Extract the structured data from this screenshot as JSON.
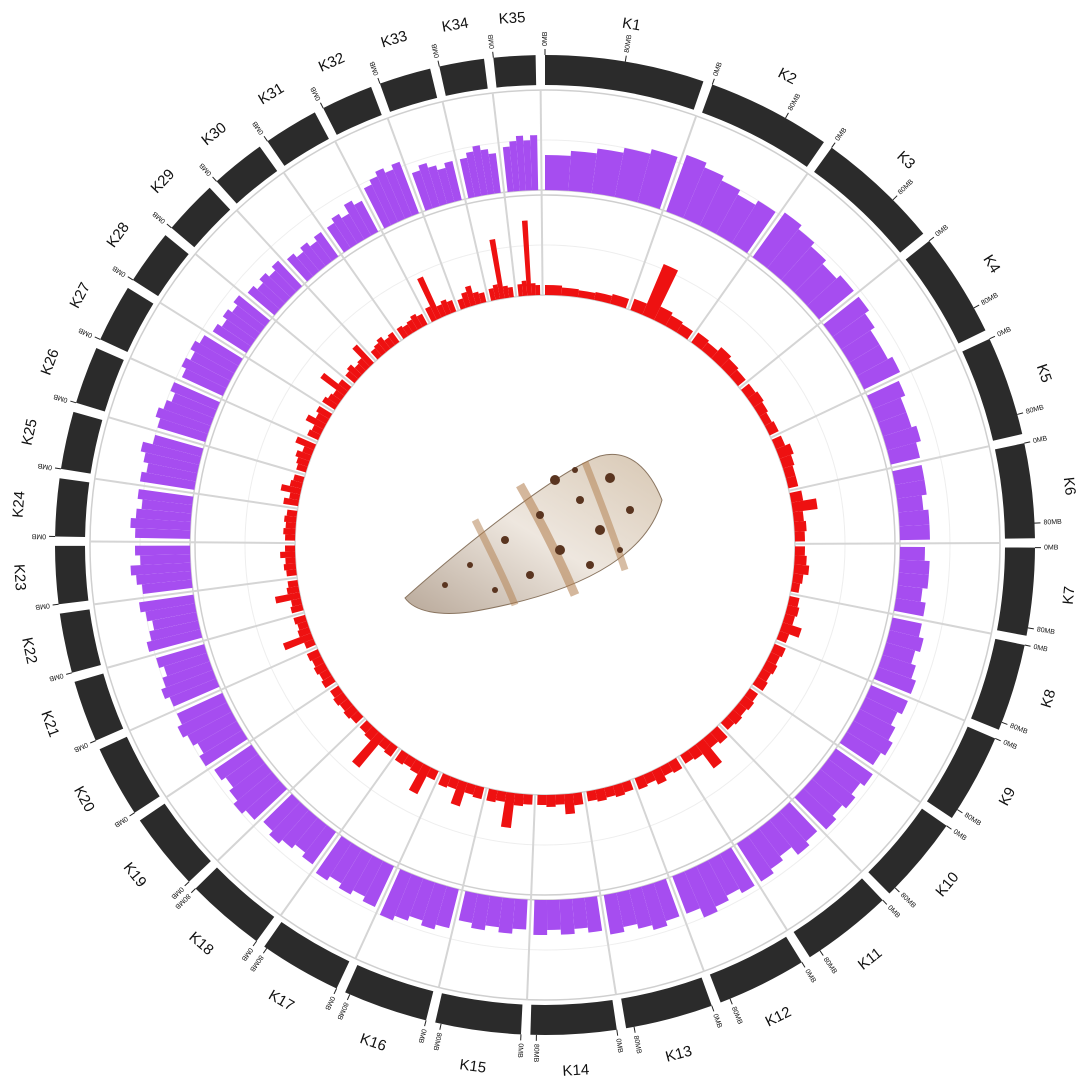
{
  "chart_data": {
    "type": "circos",
    "chromosomes": [
      {
        "name": "K1",
        "length": 160
      },
      {
        "name": "K2",
        "length": 125
      },
      {
        "name": "K3",
        "length": 125
      },
      {
        "name": "K4",
        "length": 105
      },
      {
        "name": "K5",
        "length": 100
      },
      {
        "name": "K6",
        "length": 95
      },
      {
        "name": "K7",
        "length": 88
      },
      {
        "name": "K8",
        "length": 88
      },
      {
        "name": "K9",
        "length": 90
      },
      {
        "name": "K10",
        "length": 88
      },
      {
        "name": "K11",
        "length": 92
      },
      {
        "name": "K12",
        "length": 90
      },
      {
        "name": "K13",
        "length": 88
      },
      {
        "name": "K14",
        "length": 86
      },
      {
        "name": "K15",
        "length": 86
      },
      {
        "name": "K16",
        "length": 85
      },
      {
        "name": "K17",
        "length": 83
      },
      {
        "name": "K18",
        "length": 80
      },
      {
        "name": "K19",
        "length": 78
      },
      {
        "name": "K20",
        "length": 72
      },
      {
        "name": "K21",
        "length": 62
      },
      {
        "name": "K22",
        "length": 60
      },
      {
        "name": "K23",
        "length": 58
      },
      {
        "name": "K24",
        "length": 58
      },
      {
        "name": "K25",
        "length": 58
      },
      {
        "name": "K26",
        "length": 58
      },
      {
        "name": "K27",
        "length": 58
      },
      {
        "name": "K28",
        "length": 55
      },
      {
        "name": "K29",
        "length": 55
      },
      {
        "name": "K30",
        "length": 55
      },
      {
        "name": "K31",
        "length": 55
      },
      {
        "name": "K32",
        "length": 52
      },
      {
        "name": "K33",
        "length": 52
      },
      {
        "name": "K34",
        "length": 45
      },
      {
        "name": "K35",
        "length": 42
      }
    ],
    "ticks": [
      {
        "value": 0,
        "label": "0MB"
      },
      {
        "value": 80,
        "label": "80MB"
      }
    ],
    "color": "#2b2b2b",
    "tracks": [
      {
        "color": "#a64df0",
        "ylim": [
          0,
          1
        ],
        "values": [
          [
            0.35,
            0.4,
            0.45,
            0.5,
            0.55
          ],
          [
            0.6,
            0.55,
            0.5,
            0.45,
            0.5
          ],
          [
            0.55,
            0.5,
            0.45,
            0.4,
            0.45
          ],
          [
            0.45,
            0.4,
            0.35,
            0.35,
            0.4
          ],
          [
            0.35,
            0.3,
            0.3,
            0.35,
            0.3
          ],
          [
            0.3,
            0.3,
            0.25,
            0.3,
            0.3
          ],
          [
            0.25,
            0.3,
            0.3,
            0.25,
            0.3
          ],
          [
            0.3,
            0.35,
            0.3,
            0.35,
            0.4
          ],
          [
            0.4,
            0.35,
            0.4,
            0.45,
            0.4
          ],
          [
            0.45,
            0.4,
            0.45,
            0.4,
            0.45
          ],
          [
            0.4,
            0.45,
            0.35,
            0.4,
            0.45
          ],
          [
            0.45,
            0.4,
            0.45,
            0.5,
            0.4
          ],
          [
            0.4,
            0.45,
            0.4,
            0.35,
            0.4
          ],
          [
            0.35,
            0.3,
            0.35,
            0.3,
            0.35
          ],
          [
            0.3,
            0.35,
            0.3,
            0.35,
            0.3
          ],
          [
            0.4,
            0.45,
            0.4,
            0.45,
            0.5
          ],
          [
            0.45,
            0.4,
            0.45,
            0.4,
            0.45
          ],
          [
            0.4,
            0.35,
            0.4,
            0.45,
            0.4
          ],
          [
            0.45,
            0.5,
            0.45,
            0.4,
            0.45
          ],
          [
            0.5,
            0.45,
            0.5,
            0.55,
            0.5
          ],
          [
            0.5,
            0.55,
            0.5,
            0.45,
            0.5
          ],
          [
            0.55,
            0.5,
            0.45,
            0.5,
            0.55
          ],
          [
            0.5,
            0.55,
            0.6,
            0.5,
            0.55
          ],
          [
            0.55,
            0.6,
            0.55,
            0.5,
            0.55
          ],
          [
            0.55,
            0.5,
            0.55,
            0.6,
            0.5
          ],
          [
            0.5,
            0.55,
            0.5,
            0.45,
            0.5
          ],
          [
            0.45,
            0.5,
            0.45,
            0.5,
            0.45
          ],
          [
            0.4,
            0.35,
            0.4,
            0.35,
            0.4
          ],
          [
            0.35,
            0.3,
            0.35,
            0.3,
            0.35
          ],
          [
            0.3,
            0.25,
            0.3,
            0.25,
            0.3
          ],
          [
            0.3,
            0.35,
            0.3,
            0.4,
            0.35
          ],
          [
            0.45,
            0.5,
            0.55,
            0.5,
            0.55
          ],
          [
            0.4,
            0.45,
            0.4,
            0.35,
            0.4
          ],
          [
            0.4,
            0.45,
            0.5,
            0.45,
            0.4
          ],
          [
            0.45,
            0.5,
            0.55,
            0.5,
            0.55
          ]
        ]
      },
      {
        "color": "#ee1111",
        "ylim": [
          0,
          1
        ],
        "values": [
          [
            0.1,
            0.08,
            0.07,
            0.08,
            0.1
          ],
          [
            0.12,
            0.55,
            0.15,
            0.12,
            0.1
          ],
          [
            0.12,
            0.1,
            0.15,
            0.12,
            0.1
          ],
          [
            0.1,
            0.12,
            0.1,
            0.08,
            0.1
          ],
          [
            0.1,
            0.15,
            0.12,
            0.1,
            0.1
          ],
          [
            0.12,
            0.25,
            0.1,
            0.12,
            0.1
          ],
          [
            0.1,
            0.12,
            0.15,
            0.1,
            0.08
          ],
          [
            0.1,
            0.12,
            0.1,
            0.2,
            0.1
          ],
          [
            0.12,
            0.1,
            0.12,
            0.1,
            0.12
          ],
          [
            0.1,
            0.12,
            0.1,
            0.12,
            0.1
          ],
          [
            0.15,
            0.12,
            0.3,
            0.12,
            0.1
          ],
          [
            0.12,
            0.1,
            0.15,
            0.1,
            0.12
          ],
          [
            0.1,
            0.12,
            0.1,
            0.12,
            0.1
          ],
          [
            0.12,
            0.2,
            0.1,
            0.12,
            0.1
          ],
          [
            0.1,
            0.12,
            0.35,
            0.1,
            0.12
          ],
          [
            0.12,
            0.1,
            0.25,
            0.1,
            0.12
          ],
          [
            0.1,
            0.3,
            0.12,
            0.1,
            0.12
          ],
          [
            0.12,
            0.1,
            0.4,
            0.12,
            0.1
          ],
          [
            0.1,
            0.12,
            0.1,
            0.12,
            0.1
          ],
          [
            0.12,
            0.1,
            0.12,
            0.1,
            0.12
          ],
          [
            0.1,
            0.3,
            0.12,
            0.1,
            0.12
          ],
          [
            0.12,
            0.1,
            0.25,
            0.12,
            0.1
          ],
          [
            0.1,
            0.12,
            0.1,
            0.15,
            0.1
          ],
          [
            0.1,
            0.12,
            0.1,
            0.12,
            0.1
          ],
          [
            0.15,
            0.1,
            0.2,
            0.12,
            0.1
          ],
          [
            0.1,
            0.12,
            0.15,
            0.1,
            0.2
          ],
          [
            0.12,
            0.1,
            0.2,
            0.12,
            0.15
          ],
          [
            0.15,
            0.12,
            0.1,
            0.3,
            0.12
          ],
          [
            0.12,
            0.15,
            0.1,
            0.12,
            0.25
          ],
          [
            0.1,
            0.12,
            0.15,
            0.1,
            0.12
          ],
          [
            0.12,
            0.1,
            0.12,
            0.15,
            0.12
          ],
          [
            0.15,
            0.45,
            0.12,
            0.15,
            0.12
          ],
          [
            0.1,
            0.15,
            0.2,
            0.12,
            0.1
          ],
          [
            0.12,
            0.15,
            0.6,
            0.12,
            0.1
          ],
          [
            0.12,
            0.15,
            0.75,
            0.12,
            0.1
          ]
        ]
      }
    ]
  }
}
